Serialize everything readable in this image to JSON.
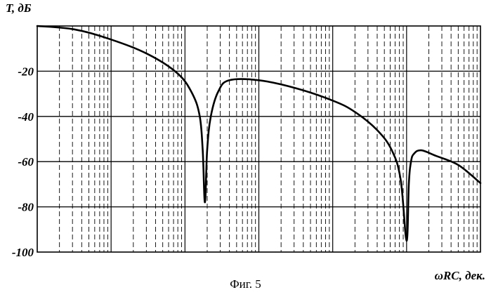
{
  "chart_data": {
    "type": "line",
    "ylabel": "T, дБ",
    "xlabel": "ωRC, дек.",
    "ylim": [
      -100,
      0
    ],
    "yticks": [
      -20,
      -40,
      -60,
      -80,
      -100
    ],
    "x_scale": "log",
    "xlim_decades": 6,
    "grid": true,
    "series": [
      {
        "x": [
          0.0,
          0.5,
          1.0,
          1.5,
          1.9,
          2.1,
          2.2,
          2.24,
          2.27,
          2.3,
          2.35,
          2.45,
          2.6,
          3.0,
          3.5,
          4.0,
          4.3,
          4.6,
          4.8,
          4.92,
          5.0,
          5.03,
          5.06,
          5.1,
          5.2,
          5.4,
          5.7,
          6.0
        ],
        "y": [
          0.0,
          -1.5,
          -6.0,
          -12.5,
          -21.0,
          -30.0,
          -40.0,
          -55.0,
          -78.0,
          -55.0,
          -40.0,
          -29.0,
          -24.0,
          -24.0,
          -27.5,
          -33.0,
          -38.0,
          -46.0,
          -55.0,
          -68.0,
          -95.0,
          -70.0,
          -60.0,
          -56.5,
          -55.0,
          -57.5,
          -61.5,
          -69.5
        ]
      }
    ]
  },
  "caption": "Фиг. 5"
}
